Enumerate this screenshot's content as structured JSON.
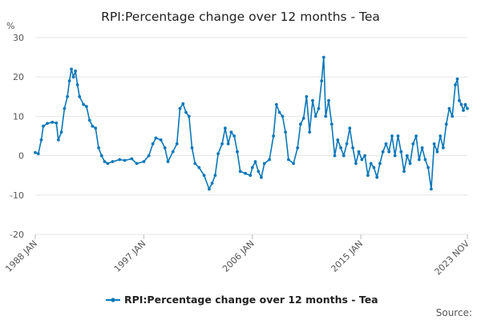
{
  "chart_data": {
    "type": "line",
    "title": "RPI:Percentage change over 12 months - Tea",
    "y_unit_label": "%",
    "xlabel": "",
    "ylabel": "",
    "ylim": [
      -20,
      30
    ],
    "y_ticks": [
      "-20",
      "-10",
      "0",
      "10",
      "20",
      "30"
    ],
    "x_tick_labels": [
      "1988 JAN",
      "1997 JAN",
      "2006 JAN",
      "2015 JAN",
      "2023 NOV"
    ],
    "x_range": [
      "1988-01",
      "2023-11"
    ],
    "grid": "horizontal",
    "legend_position": "bottom",
    "source_label": "Source:",
    "colors": {
      "series": "#0a77b8",
      "grid": "#e6e6e6",
      "text": "#222222"
    },
    "series": [
      {
        "name": "RPI:Percentage change over 12 months - Tea",
        "points": [
          [
            "1988-01",
            0.8
          ],
          [
            "1988-04",
            0.5
          ],
          [
            "1988-07",
            4
          ],
          [
            "1988-09",
            7.5
          ],
          [
            "1989-01",
            8.2
          ],
          [
            "1989-06",
            8.5
          ],
          [
            "1989-10",
            8.3
          ],
          [
            "1989-12",
            4
          ],
          [
            "1990-03",
            6
          ],
          [
            "1990-06",
            12
          ],
          [
            "1990-09",
            15
          ],
          [
            "1990-11",
            19
          ],
          [
            "1991-01",
            22
          ],
          [
            "1991-03",
            20
          ],
          [
            "1991-05",
            21.5
          ],
          [
            "1991-07",
            18
          ],
          [
            "1991-09",
            15
          ],
          [
            "1992-01",
            13
          ],
          [
            "1992-04",
            12.5
          ],
          [
            "1992-07",
            9
          ],
          [
            "1992-10",
            7.5
          ],
          [
            "1993-01",
            7
          ],
          [
            "1993-04",
            2
          ],
          [
            "1993-07",
            0
          ],
          [
            "1993-10",
            -1.5
          ],
          [
            "1994-01",
            -2
          ],
          [
            "1994-06",
            -1.5
          ],
          [
            "1995-01",
            -1
          ],
          [
            "1995-06",
            -1.2
          ],
          [
            "1996-01",
            -0.8
          ],
          [
            "1996-06",
            -2
          ],
          [
            "1997-01",
            -1.5
          ],
          [
            "1997-06",
            0
          ],
          [
            "1997-10",
            3
          ],
          [
            "1998-01",
            4.5
          ],
          [
            "1998-06",
            4
          ],
          [
            "1998-10",
            2
          ],
          [
            "1999-01",
            -1.5
          ],
          [
            "1999-06",
            1
          ],
          [
            "1999-10",
            3
          ],
          [
            "2000-01",
            12
          ],
          [
            "2000-04",
            13.2
          ],
          [
            "2000-07",
            11
          ],
          [
            "2000-10",
            10
          ],
          [
            "2001-01",
            2
          ],
          [
            "2001-04",
            -2
          ],
          [
            "2001-08",
            -3
          ],
          [
            "2002-01",
            -5
          ],
          [
            "2002-06",
            -8.5
          ],
          [
            "2002-09",
            -7
          ],
          [
            "2002-12",
            -5
          ],
          [
            "2003-03",
            0.5
          ],
          [
            "2003-07",
            3
          ],
          [
            "2003-10",
            7
          ],
          [
            "2004-01",
            3
          ],
          [
            "2004-04",
            6
          ],
          [
            "2004-07",
            5
          ],
          [
            "2004-10",
            1
          ],
          [
            "2005-01",
            -4
          ],
          [
            "2005-06",
            -4.5
          ],
          [
            "2005-11",
            -5
          ],
          [
            "2006-01",
            -3
          ],
          [
            "2006-04",
            -1.5
          ],
          [
            "2006-07",
            -4
          ],
          [
            "2006-10",
            -5.5
          ],
          [
            "2007-01",
            -2
          ],
          [
            "2007-06",
            -1
          ],
          [
            "2007-10",
            5
          ],
          [
            "2008-01",
            13
          ],
          [
            "2008-04",
            11
          ],
          [
            "2008-07",
            10
          ],
          [
            "2008-10",
            6
          ],
          [
            "2009-01",
            -1
          ],
          [
            "2009-06",
            -2
          ],
          [
            "2009-10",
            2
          ],
          [
            "2010-01",
            8
          ],
          [
            "2010-04",
            9.5
          ],
          [
            "2010-07",
            15
          ],
          [
            "2010-10",
            6
          ],
          [
            "2011-01",
            14
          ],
          [
            "2011-04",
            10
          ],
          [
            "2011-07",
            12
          ],
          [
            "2011-10",
            19
          ],
          [
            "2011-12",
            25
          ],
          [
            "2012-02",
            10
          ],
          [
            "2012-05",
            14
          ],
          [
            "2012-08",
            8
          ],
          [
            "2012-11",
            0
          ],
          [
            "2013-02",
            4
          ],
          [
            "2013-05",
            2
          ],
          [
            "2013-08",
            0
          ],
          [
            "2013-11",
            3
          ],
          [
            "2014-02",
            7
          ],
          [
            "2014-05",
            2
          ],
          [
            "2014-08",
            -2
          ],
          [
            "2014-11",
            1
          ],
          [
            "2015-02",
            -1
          ],
          [
            "2015-05",
            0
          ],
          [
            "2015-08",
            -5
          ],
          [
            "2015-11",
            -2
          ],
          [
            "2016-02",
            -3
          ],
          [
            "2016-05",
            -5.5
          ],
          [
            "2016-08",
            -2
          ],
          [
            "2016-11",
            1
          ],
          [
            "2017-02",
            3
          ],
          [
            "2017-05",
            1
          ],
          [
            "2017-08",
            5
          ],
          [
            "2017-11",
            0
          ],
          [
            "2018-02",
            5
          ],
          [
            "2018-05",
            1
          ],
          [
            "2018-08",
            -4
          ],
          [
            "2018-11",
            0
          ],
          [
            "2019-02",
            -2
          ],
          [
            "2019-05",
            3
          ],
          [
            "2019-08",
            5
          ],
          [
            "2019-11",
            -1
          ],
          [
            "2020-02",
            2
          ],
          [
            "2020-05",
            -1
          ],
          [
            "2020-08",
            -3
          ],
          [
            "2020-11",
            -8.5
          ],
          [
            "2021-02",
            3
          ],
          [
            "2021-05",
            1
          ],
          [
            "2021-08",
            5
          ],
          [
            "2021-11",
            2
          ],
          [
            "2022-02",
            8
          ],
          [
            "2022-05",
            12
          ],
          [
            "2022-08",
            10
          ],
          [
            "2022-11",
            18
          ],
          [
            "2023-01",
            19.5
          ],
          [
            "2023-03",
            14
          ],
          [
            "2023-05",
            13
          ],
          [
            "2023-07",
            11.5
          ],
          [
            "2023-09",
            13
          ],
          [
            "2023-11",
            12
          ]
        ]
      }
    ]
  }
}
